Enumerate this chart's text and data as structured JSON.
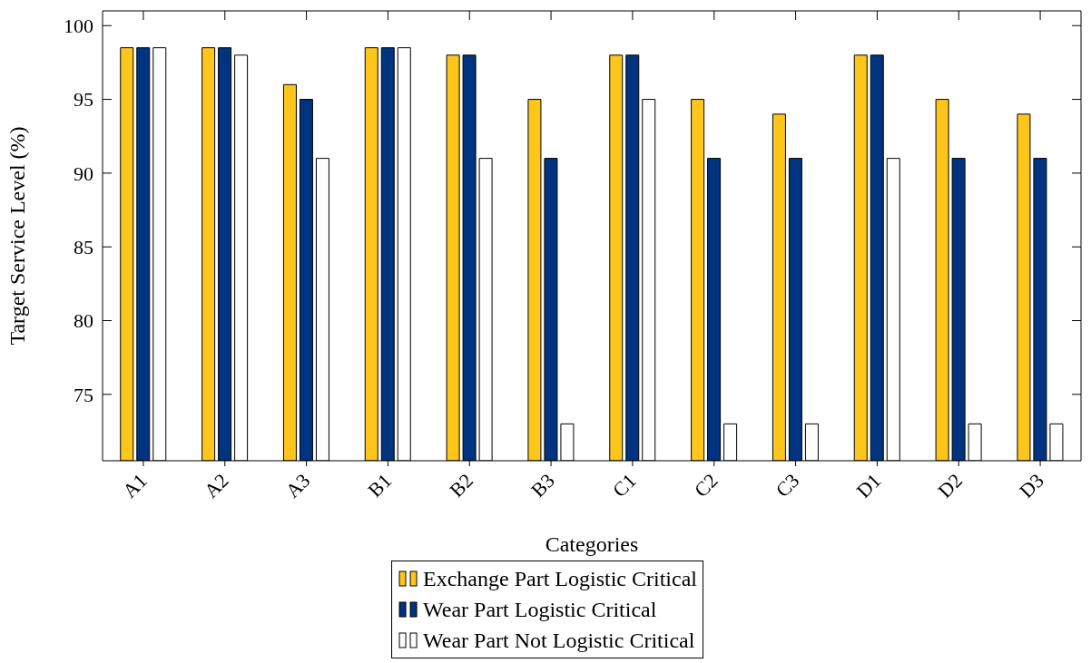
{
  "chart_data": {
    "type": "bar",
    "xlabel": "Categories",
    "ylabel": "Target Service Level (%)",
    "categories": [
      "A1",
      "A2",
      "A3",
      "B1",
      "B2",
      "B3",
      "C1",
      "C2",
      "C3",
      "D1",
      "D2",
      "D3"
    ],
    "series": [
      {
        "name": "Exchange Part Logistic Critical",
        "color": "#fec51a",
        "values": [
          98.5,
          98.5,
          96,
          98.5,
          98,
          95,
          98,
          95,
          94,
          98,
          95,
          94
        ]
      },
      {
        "name": "Wear Part Logistic Critical",
        "color": "#003380",
        "values": [
          98.5,
          98.5,
          95,
          98.5,
          98,
          91,
          98,
          91,
          91,
          98,
          91,
          91
        ]
      },
      {
        "name": "Wear Part Not Logistic Critical",
        "color": "#ffffff",
        "values": [
          98.5,
          98,
          91,
          98.5,
          91,
          73,
          95,
          73,
          73,
          91,
          73,
          73
        ]
      }
    ],
    "ylim": [
      70.5,
      101
    ],
    "yticks": [
      75,
      80,
      85,
      90,
      95,
      100
    ],
    "grid": false,
    "legend": "bottom"
  }
}
